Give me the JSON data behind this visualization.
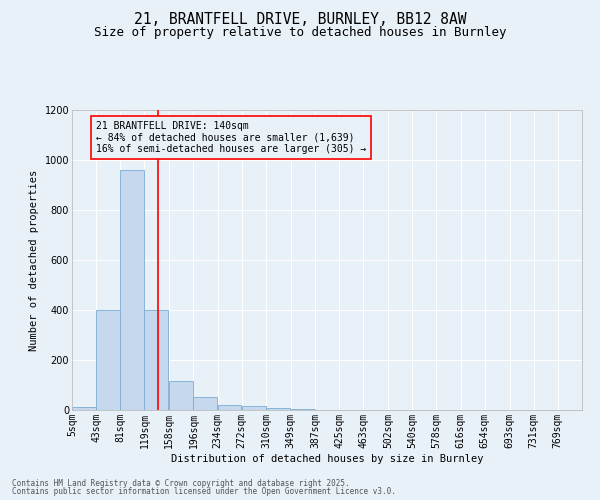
{
  "title_line1": "21, BRANTFELL DRIVE, BURNLEY, BB12 8AW",
  "title_line2": "Size of property relative to detached houses in Burnley",
  "xlabel": "Distribution of detached houses by size in Burnley",
  "ylabel": "Number of detached properties",
  "footer_line1": "Contains HM Land Registry data © Crown copyright and database right 2025.",
  "footer_line2": "Contains public sector information licensed under the Open Government Licence v3.0.",
  "annotation_title": "21 BRANTFELL DRIVE: 140sqm",
  "annotation_line2": "← 84% of detached houses are smaller (1,639)",
  "annotation_line3": "16% of semi-detached houses are larger (305) →",
  "bar_color": "#c5d8ee",
  "bar_edge_color": "#7aadd4",
  "redline_x": 140,
  "categories": [
    "5sqm",
    "43sqm",
    "81sqm",
    "119sqm",
    "158sqm",
    "196sqm",
    "234sqm",
    "272sqm",
    "310sqm",
    "349sqm",
    "387sqm",
    "425sqm",
    "463sqm",
    "502sqm",
    "540sqm",
    "578sqm",
    "616sqm",
    "654sqm",
    "693sqm",
    "731sqm",
    "769sqm"
  ],
  "bin_edges": [
    5,
    43,
    81,
    119,
    158,
    196,
    234,
    272,
    310,
    349,
    387,
    425,
    463,
    502,
    540,
    578,
    616,
    654,
    693,
    731,
    769
  ],
  "values": [
    12,
    400,
    960,
    400,
    115,
    52,
    22,
    15,
    10,
    5,
    0,
    0,
    0,
    0,
    0,
    0,
    0,
    0,
    0,
    0,
    0
  ],
  "ylim": [
    0,
    1200
  ],
  "yticks": [
    0,
    200,
    400,
    600,
    800,
    1000,
    1200
  ],
  "background_color": "#e8f0f8",
  "grid_color": "#ffffff",
  "title_fontsize": 10.5,
  "subtitle_fontsize": 9,
  "axis_label_fontsize": 7.5,
  "tick_fontsize": 7,
  "annotation_fontsize": 7,
  "footer_fontsize": 5.5
}
